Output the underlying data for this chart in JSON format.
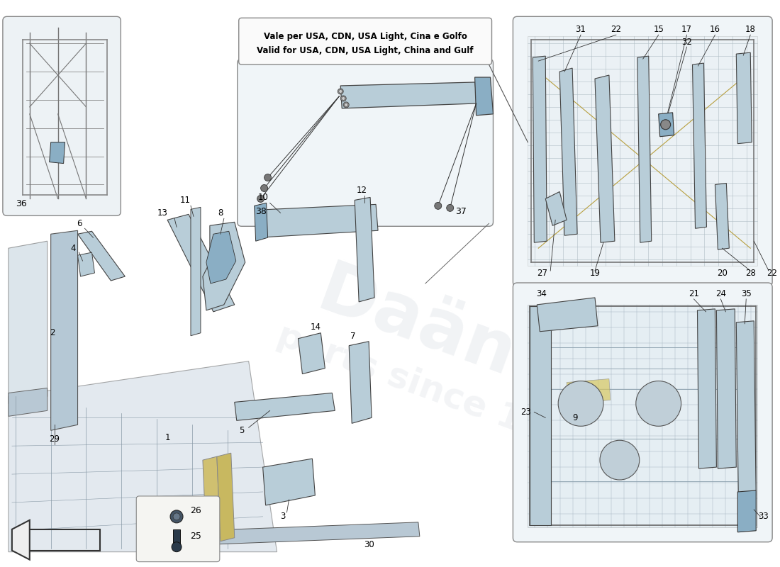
{
  "background_color": "#ffffff",
  "blue_part": "#b8cdd8",
  "blue_part_dark": "#8aaec4",
  "blue_light": "#ccdce8",
  "frame_color": "#c0cfda",
  "yellow_accent": "#d8c860",
  "line_color": "#333333",
  "note_text1": "Vale per USA, CDN, USA Light, Cina e Golfo",
  "note_text2": "Valid for USA, CDN, USA Light, China and Gulf",
  "watermark_alpha": 0.18,
  "figwidth": 11.0,
  "figheight": 8.0,
  "dpi": 100
}
